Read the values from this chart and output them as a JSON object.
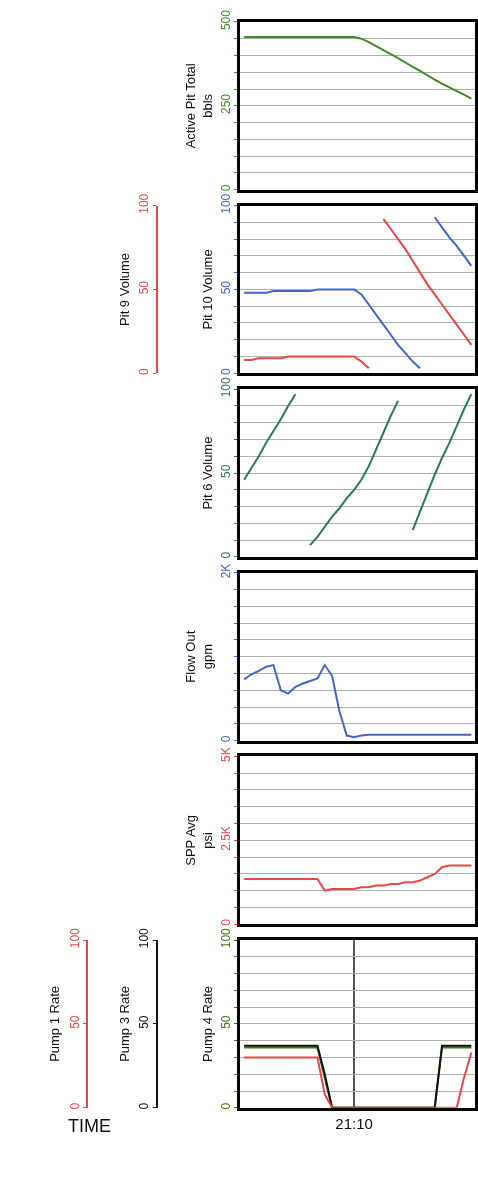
{
  "chart_data": [
    {
      "type": "line",
      "ylabel": "Active Pit Total\nbbls",
      "categories": [
        null,
        null,
        null,
        null,
        null,
        null,
        null,
        null,
        null,
        null,
        null,
        null,
        null,
        null,
        null,
        null,
        null,
        null,
        null,
        null,
        null,
        null,
        null,
        null,
        null,
        null,
        null,
        null,
        null,
        null,
        null,
        null
      ],
      "tick_labels": "y",
      "grid": true,
      "ylim": [
        0,
        500
      ],
      "yticks": [
        0,
        {
          "value": 50,
          "label": null
        },
        {
          "value": 100,
          "label": null
        },
        {
          "value": 150,
          "label": null
        },
        {
          "value": 200,
          "label": null
        },
        250,
        {
          "value": 300,
          "label": null
        },
        {
          "value": 350,
          "label": null
        },
        {
          "value": 400,
          "label": null
        },
        {
          "value": 450,
          "label": null
        },
        500
      ],
      "series": [
        {
          "color": "#3d8b26",
          "values": [
            455,
            455,
            455,
            455,
            455,
            455,
            455,
            455,
            455,
            455,
            455,
            455,
            455,
            455,
            455,
            455,
            450,
            440,
            428,
            416,
            404,
            392,
            379,
            366,
            354,
            341,
            328,
            316,
            305,
            294,
            283,
            271
          ]
        }
      ]
    },
    {
      "type": "line",
      "ylabel": "Pit 10 Volume",
      "y2label": "Pit 9 Volume",
      "categories": [
        null,
        null,
        null,
        null,
        null,
        null,
        null,
        null,
        null,
        null,
        null,
        null,
        null,
        null,
        null,
        null,
        null,
        null,
        null,
        null,
        null,
        null,
        null,
        null,
        null,
        null,
        null,
        null,
        null,
        null,
        null,
        null
      ],
      "tick_labels": "y",
      "grid": true,
      "ylim": [
        0,
        100
      ],
      "yticks": [
        0,
        {
          "value": 10,
          "label": null
        },
        {
          "value": 20,
          "label": null
        },
        {
          "value": 30,
          "label": null
        },
        {
          "value": 40,
          "label": null
        },
        50,
        {
          "value": 60,
          "label": null
        },
        {
          "value": 70,
          "label": null
        },
        {
          "value": 80,
          "label": null
        },
        {
          "value": 90,
          "label": null
        },
        100
      ],
      "y2lim": [
        0,
        100
      ],
      "y2ticks": [
        0,
        50,
        100
      ],
      "series": [
        {
          "color": "#e8474a",
          "axis": "y2",
          "values": [
            8,
            8,
            9,
            9,
            9,
            9,
            10,
            10,
            10,
            10,
            10,
            10,
            10,
            10,
            10,
            10,
            7,
            3,
            null,
            null,
            null,
            null,
            null,
            null,
            null,
            null,
            null,
            null,
            null,
            null,
            null,
            null
          ]
        },
        {
          "color": "#e8474a",
          "axis": "y2",
          "values": [
            null,
            null,
            null,
            null,
            null,
            null,
            null,
            null,
            null,
            null,
            null,
            null,
            null,
            null,
            null,
            null,
            null,
            null,
            null,
            92,
            86,
            80,
            74,
            67,
            60,
            53,
            47,
            41,
            35,
            29,
            23,
            17
          ]
        },
        {
          "color": "#4466c8",
          "values": [
            48,
            48,
            48,
            48,
            49,
            49,
            49,
            49,
            49,
            49,
            50,
            50,
            50,
            50,
            50,
            50,
            47,
            41,
            35,
            29,
            23,
            17,
            12,
            7,
            3,
            null,
            null,
            null,
            null,
            null,
            null,
            null
          ]
        },
        {
          "color": "#4466c8",
          "values": [
            null,
            null,
            null,
            null,
            null,
            null,
            null,
            null,
            null,
            null,
            null,
            null,
            null,
            null,
            null,
            null,
            null,
            null,
            null,
            null,
            null,
            null,
            null,
            null,
            null,
            null,
            93,
            87,
            81,
            76,
            70,
            64
          ]
        }
      ]
    },
    {
      "type": "line",
      "ylabel": "Pit 6 Volume",
      "categories": [
        null,
        null,
        null,
        null,
        null,
        null,
        null,
        null,
        null,
        null,
        null,
        null,
        null,
        null,
        null,
        null,
        null,
        null,
        null,
        null,
        null,
        null,
        null,
        null,
        null,
        null,
        null,
        null,
        null,
        null,
        null,
        null
      ],
      "tick_labels": "y",
      "grid": true,
      "ylim": [
        0,
        100
      ],
      "yticks": [
        0,
        {
          "value": 10,
          "label": null
        },
        {
          "value": 20,
          "label": null
        },
        {
          "value": 30,
          "label": null
        },
        {
          "value": 40,
          "label": null
        },
        50,
        {
          "value": 60,
          "label": null
        },
        {
          "value": 70,
          "label": null
        },
        {
          "value": 80,
          "label": null
        },
        {
          "value": 90,
          "label": null
        },
        100
      ],
      "series": [
        {
          "color": "#2a7a55",
          "values": [
            46,
            53,
            60,
            68,
            75,
            82,
            90,
            97,
            null,
            7,
            12,
            18,
            24,
            29,
            35,
            40,
            46,
            54,
            64,
            74,
            84,
            93,
            null,
            16,
            27,
            38,
            49,
            59,
            68,
            78,
            88,
            97
          ]
        }
      ]
    },
    {
      "type": "line",
      "ylabel": "Flow Out\ngpm",
      "categories": [
        null,
        null,
        null,
        null,
        null,
        null,
        null,
        null,
        null,
        null,
        null,
        null,
        null,
        null,
        null,
        null,
        null,
        null,
        null,
        null,
        null,
        null,
        null,
        null,
        null,
        null,
        null,
        null,
        null,
        null,
        null,
        null
      ],
      "tick_labels": "y",
      "grid": true,
      "ylim": [
        0,
        2000
      ],
      "yticks": [
        0,
        {
          "value": 200,
          "label": null
        },
        {
          "value": 400,
          "label": null
        },
        {
          "value": 600,
          "label": null
        },
        {
          "value": 800,
          "label": null
        },
        {
          "value": 1000,
          "label": null
        },
        {
          "value": 1200,
          "label": null
        },
        {
          "value": 1400,
          "label": null
        },
        {
          "value": 1600,
          "label": null
        },
        {
          "value": 1800,
          "label": null
        },
        {
          "value": 2000,
          "label": "2K"
        }
      ],
      "series": [
        {
          "color": "#4466c8",
          "values": [
            730,
            790,
            830,
            880,
            900,
            600,
            560,
            640,
            680,
            710,
            740,
            900,
            770,
            350,
            60,
            40,
            60,
            70,
            70,
            70,
            70,
            70,
            70,
            70,
            70,
            70,
            70,
            70,
            70,
            70,
            70,
            70
          ]
        }
      ]
    },
    {
      "type": "line",
      "ylabel": "SPP Avg\npsi",
      "categories": [
        null,
        null,
        null,
        null,
        null,
        null,
        null,
        null,
        null,
        null,
        null,
        null,
        null,
        null,
        null,
        null,
        null,
        null,
        null,
        null,
        null,
        null,
        null,
        null,
        null,
        null,
        null,
        null,
        null,
        null,
        null,
        null
      ],
      "tick_labels": "y",
      "grid": true,
      "ylim": [
        0,
        5000
      ],
      "yticks": [
        0,
        {
          "value": 500,
          "label": null
        },
        {
          "value": 1000,
          "label": null
        },
        {
          "value": 1500,
          "label": null
        },
        {
          "value": 2000,
          "label": null
        },
        {
          "value": 2500,
          "label": "2.5K"
        },
        {
          "value": 3000,
          "label": null
        },
        {
          "value": 3500,
          "label": null
        },
        {
          "value": 4000,
          "label": null
        },
        {
          "value": 4500,
          "label": null
        },
        {
          "value": 5000,
          "label": "5K"
        }
      ],
      "series": [
        {
          "color": "#e8474a",
          "values": [
            1350,
            1350,
            1350,
            1350,
            1350,
            1350,
            1350,
            1350,
            1350,
            1350,
            1350,
            1000,
            1050,
            1050,
            1050,
            1050,
            1100,
            1100,
            1150,
            1150,
            1200,
            1200,
            1250,
            1250,
            1300,
            1400,
            1500,
            1700,
            1750,
            1750,
            1750,
            1750
          ]
        }
      ]
    },
    {
      "type": "line",
      "ylabel": "Pump 4 Rate",
      "y2label": "Pump 3 Rate",
      "y3label": "Pump 1 Rate",
      "xlabel": "TIME",
      "categories": [
        null,
        null,
        null,
        null,
        null,
        null,
        null,
        null,
        null,
        null,
        null,
        null,
        null,
        null,
        null,
        "21:10",
        null,
        null,
        null,
        null,
        null,
        null,
        null,
        null,
        null,
        null,
        null,
        null,
        null,
        null,
        null,
        null
      ],
      "grid": true,
      "ylim": [
        0,
        100
      ],
      "yticks": [
        0,
        {
          "value": 10,
          "label": null
        },
        {
          "value": 20,
          "label": null
        },
        {
          "value": 30,
          "label": null
        },
        {
          "value": 40,
          "label": null
        },
        50,
        {
          "value": 60,
          "label": null
        },
        {
          "value": 70,
          "label": null
        },
        {
          "value": 80,
          "label": null
        },
        {
          "value": 90,
          "label": null
        },
        100
      ],
      "y2lim": [
        0,
        100
      ],
      "y2ticks": [
        0,
        50,
        100
      ],
      "y3lim": [
        0,
        100
      ],
      "y3ticks": [
        0,
        50,
        100
      ],
      "series": [
        {
          "color": "#e8474a",
          "axis": "y3",
          "values": [
            30,
            30,
            30,
            30,
            30,
            30,
            30,
            30,
            30,
            30,
            30,
            8,
            0,
            0,
            0,
            0,
            0,
            0,
            0,
            0,
            0,
            0,
            0,
            0,
            0,
            0,
            0,
            0,
            0,
            0,
            18,
            33
          ]
        },
        {
          "color": "#111111",
          "axis": "y2",
          "values": [
            37,
            37,
            37,
            37,
            37,
            37,
            37,
            37,
            37,
            37,
            37,
            20,
            0,
            0,
            0,
            0,
            0,
            0,
            0,
            0,
            0,
            0,
            0,
            0,
            0,
            0,
            0,
            37,
            37,
            37,
            37,
            37
          ]
        },
        {
          "color": "#3a7a10",
          "values": [
            36,
            36,
            36,
            36,
            36,
            36,
            36,
            36,
            36,
            36,
            36,
            18,
            0,
            0,
            0,
            0,
            0,
            0,
            0,
            0,
            0,
            0,
            0,
            0,
            0,
            0,
            0,
            36,
            36,
            36,
            36,
            36
          ]
        }
      ]
    }
  ]
}
